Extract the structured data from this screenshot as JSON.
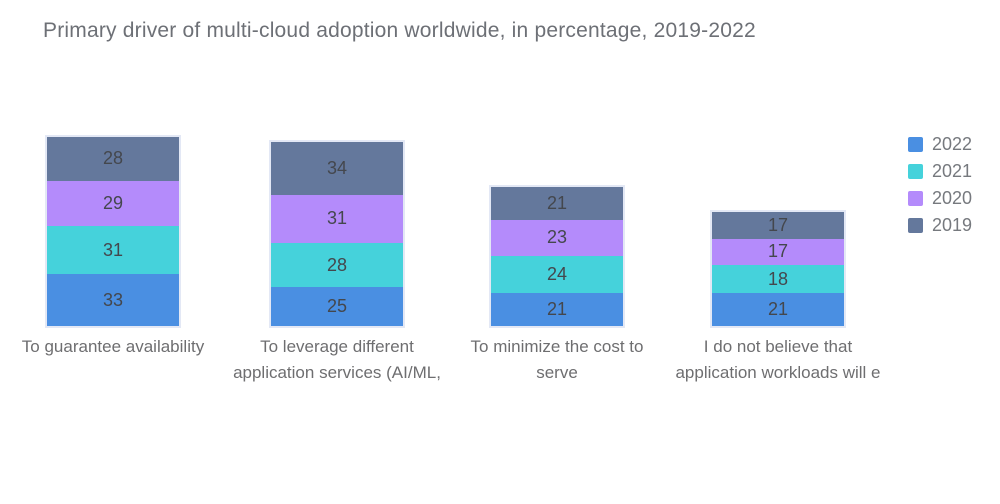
{
  "chart_data": {
    "type": "bar",
    "variant": "stacked-vertical",
    "title": "Primary driver of multi-cloud adoption worldwide, in percentage, 2019-2022",
    "unit": "percentage",
    "categories": [
      "To guarantee availability",
      "To leverage different application services (AI/ML,",
      "To minimize the cost to serve",
      "I do not believe that application workloads will e"
    ],
    "series": [
      {
        "name": "2022",
        "color": "#4a8fe2",
        "values": [
          33,
          25,
          21,
          21
        ]
      },
      {
        "name": "2021",
        "color": "#45d2db",
        "values": [
          31,
          28,
          24,
          18
        ]
      },
      {
        "name": "2020",
        "color": "#b48bfb",
        "values": [
          29,
          31,
          23,
          17
        ]
      },
      {
        "name": "2019",
        "color": "#64789c",
        "values": [
          28,
          34,
          21,
          17
        ]
      }
    ],
    "stack_order_bottom_to_top": [
      "2022",
      "2021",
      "2020",
      "2019"
    ],
    "legend_position": "right",
    "legend_order_top_to_bottom": [
      "2022",
      "2021",
      "2020",
      "2019"
    ],
    "value_labels_shown": true,
    "axes_shown": false,
    "grid": false,
    "colors": {
      "title_text": "#6d7076",
      "value_label_text": "#44474d",
      "category_label_text": "#6e6e70",
      "legend_text": "#76797e",
      "bar_outline": "#e3e8f5",
      "background": "#ffffff"
    }
  }
}
